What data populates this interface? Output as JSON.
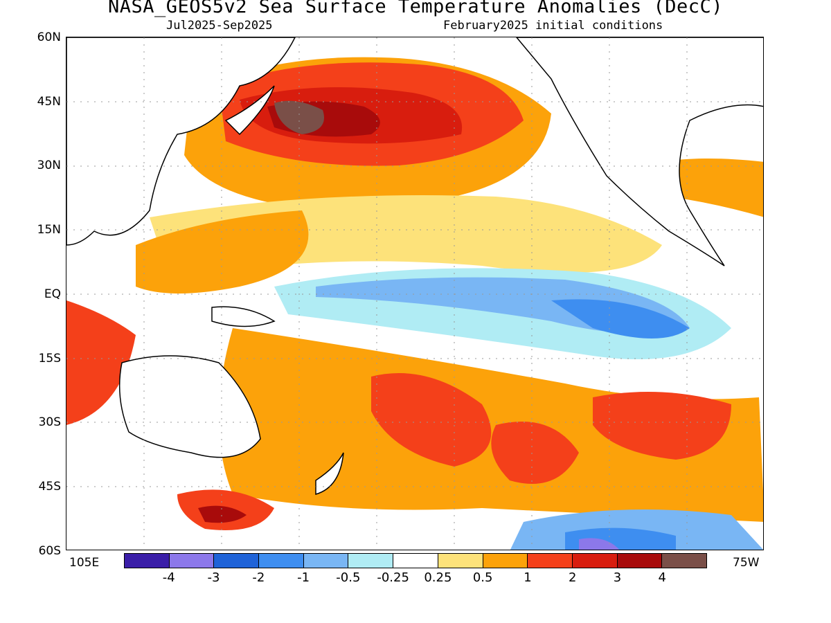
{
  "header": {
    "title": "NASA_GEOS5v2 Sea Surface Temperature Anomalies (DecC)",
    "subtitle_left": "Jul2025-Sep2025",
    "subtitle_right": "February2025 initial conditions"
  },
  "axes": {
    "lat_labels": [
      "60N",
      "45N",
      "30N",
      "15N",
      "EQ",
      "15S",
      "30S",
      "45S",
      "60S"
    ],
    "lon_labels": [
      "105E",
      "75W"
    ]
  },
  "colorbar": {
    "labels": [
      "-4",
      "-3",
      "-2",
      "-1",
      "-0.5",
      "-0.25",
      "0.25",
      "0.5",
      "1",
      "2",
      "3",
      "4"
    ],
    "colors": [
      "#3a1ea8",
      "#8c78ea",
      "#1f63d8",
      "#3e8ef0",
      "#79b6f4",
      "#b0ecf4",
      "#ffffff",
      "#fde27a",
      "#fca20a",
      "#f4401a",
      "#d81d0e",
      "#a80b0b",
      "#7a4f48"
    ]
  },
  "chart_data": {
    "type": "heatmap",
    "title": "NASA_GEOS5v2 Sea Surface Temperature Anomalies (DecC)",
    "period": "Jul2025-Sep2025",
    "initial_conditions": "February2025 initial conditions",
    "lat_range": [
      "60S",
      "60N"
    ],
    "lon_range": [
      "105E",
      "75W"
    ],
    "levels": [
      -4,
      -3,
      -2,
      -1,
      -0.5,
      -0.25,
      0.25,
      0.5,
      1,
      2,
      3,
      4
    ],
    "unit": "DecC"
  }
}
